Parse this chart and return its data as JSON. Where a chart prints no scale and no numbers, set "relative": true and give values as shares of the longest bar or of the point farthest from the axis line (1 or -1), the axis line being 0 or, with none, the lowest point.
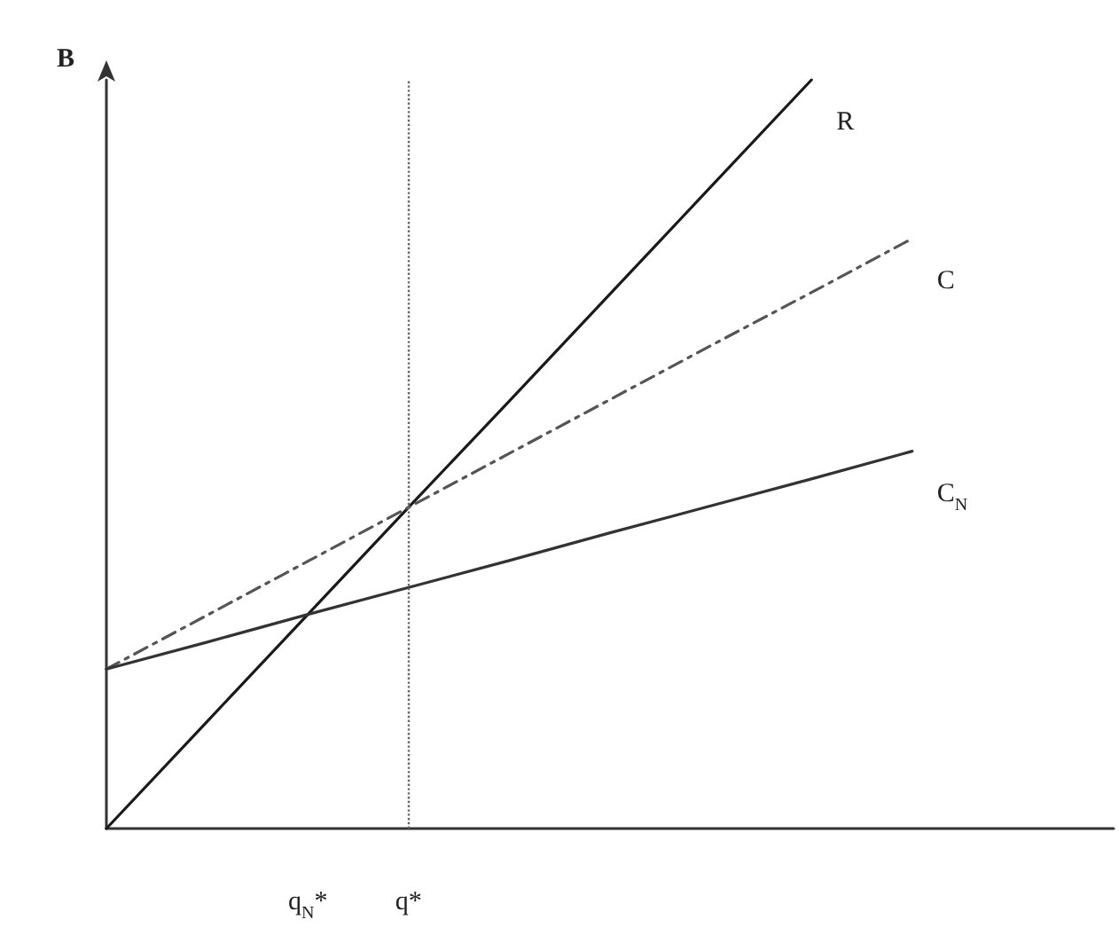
{
  "chart_data": {
    "type": "line",
    "relative": true,
    "ylabel": "B",
    "categories": [
      null,
      null,
      "q$_{N}$*",
      "q*",
      null,
      null,
      null,
      null,
      null,
      null,
      null
    ],
    "series": [
      {
        "name": "R",
        "color": "#1a1a1a",
        "values": [
          0,
          0.143,
          0.286,
          0.429,
          0.571,
          0.714,
          0.857,
          1,
          null,
          null,
          null
        ],
        "line_style": "solid"
      },
      {
        "name": "C",
        "color": "#555555",
        "values": [
          0.213,
          0.285,
          0.357,
          0.429,
          0.501,
          0.573,
          0.645,
          0.716,
          0.788,
          null,
          null
        ],
        "line_style": "dashed"
      },
      {
        "name": "C$_{N}$",
        "color": "#333333",
        "values": [
          0.213,
          0.249,
          0.286,
          0.322,
          0.358,
          0.395,
          0.431,
          0.467,
          0.504,
          null,
          null
        ],
        "line_style": "solid"
      }
    ],
    "ref_lines": [
      {
        "axis": "x",
        "value": "q*",
        "color": "#666666",
        "line_style": "dotted"
      }
    ],
    "grid": false,
    "legend": false,
    "marker": "none"
  }
}
